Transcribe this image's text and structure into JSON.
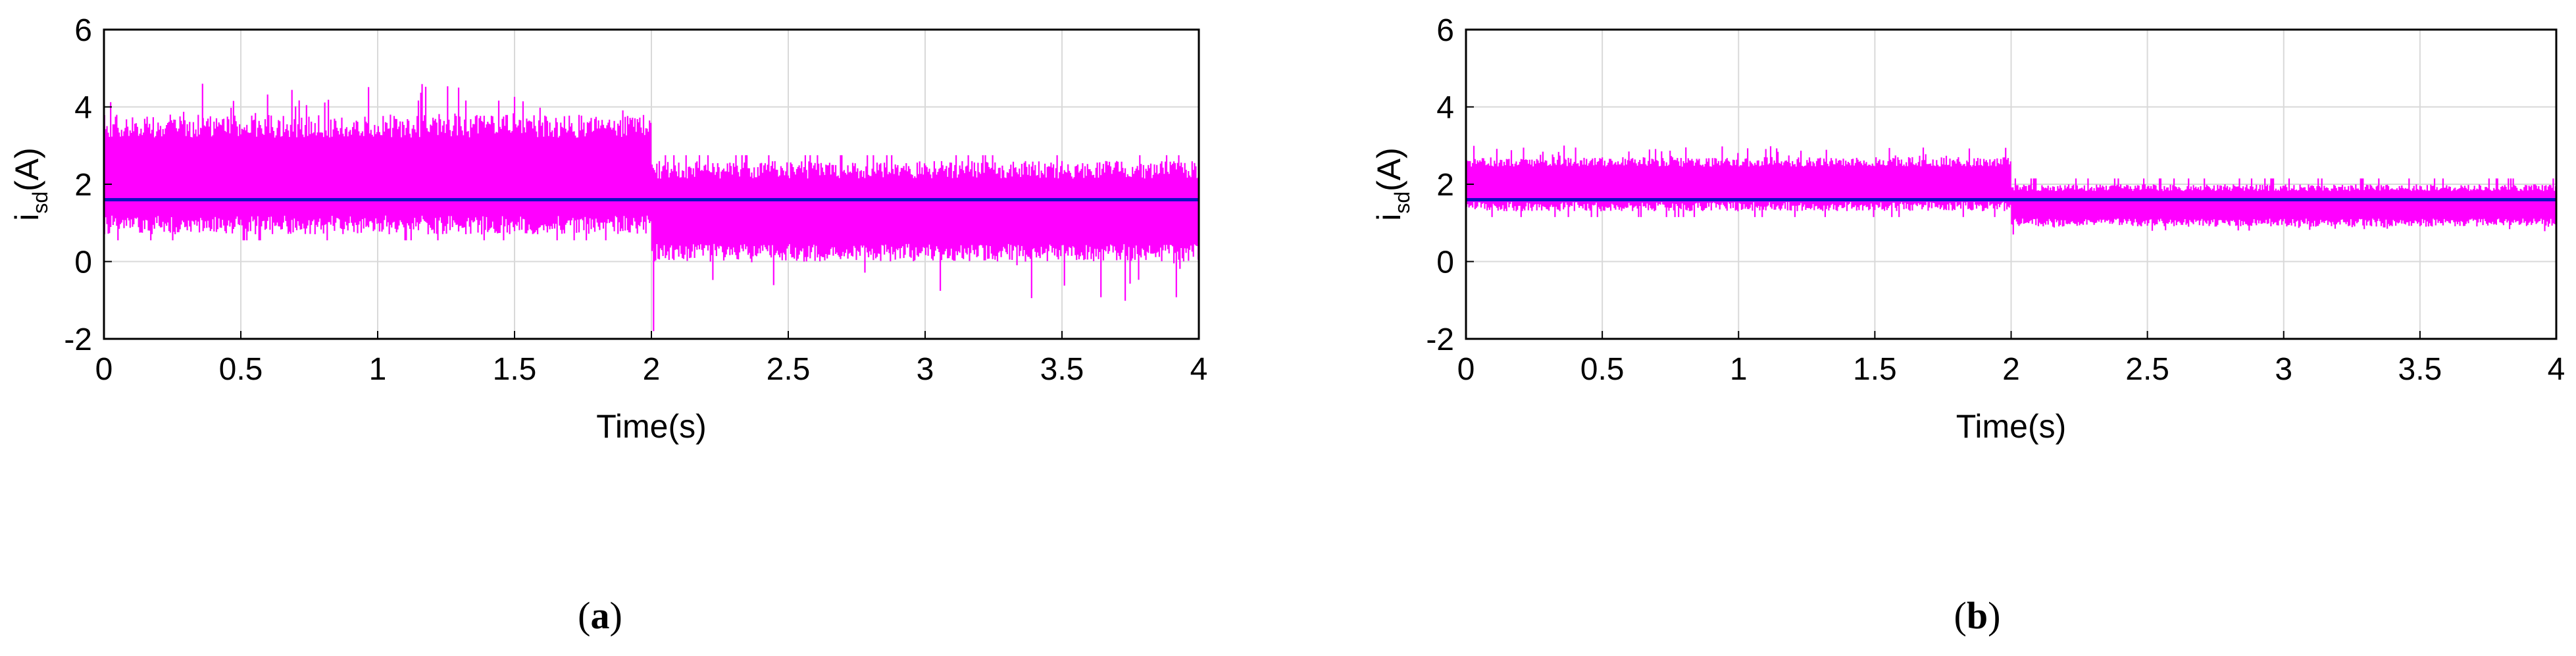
{
  "colors": {
    "noise": "#ff00ff",
    "reference": "#1010c0",
    "grid": "#d9d9d9",
    "axis": "#000000"
  },
  "chart_data": [
    {
      "type": "line",
      "panel_label": {
        "open": "(",
        "letter": "a",
        "close": ")"
      },
      "xlabel": "Time(s)",
      "ylabel": {
        "main": "i",
        "sub": "sd",
        "unit": "(A)"
      },
      "xlim": [
        0,
        4
      ],
      "ylim": [
        -2,
        6
      ],
      "x_ticks": [
        "0",
        "0.5",
        "1",
        "1.5",
        "2",
        "2.5",
        "3",
        "3.5",
        "4"
      ],
      "y_ticks": [
        "6",
        "4",
        "2",
        "0",
        "-2"
      ],
      "grid": true,
      "series": [
        {
          "type": "noise-band",
          "segments": [
            {
              "x": [
                0,
                2
              ],
              "center": 2.1,
              "low": 0.7,
              "high": 3.8,
              "peak": 4.6
            },
            {
              "x": [
                2,
                4
              ],
              "center": 1.3,
              "low": 0.0,
              "high": 2.6,
              "min": -1.8
            }
          ]
        },
        {
          "type": "reference",
          "y": 1.6
        }
      ]
    },
    {
      "type": "line",
      "panel_label": {
        "open": "(",
        "letter": "b",
        "close": ")"
      },
      "xlabel": "Time(s)",
      "ylabel": {
        "main": "i",
        "sub": "sd",
        "unit": "(A)"
      },
      "xlim": [
        0,
        4
      ],
      "ylim": [
        -2,
        6
      ],
      "x_ticks": [
        "0",
        "0.5",
        "1",
        "1.5",
        "2",
        "2.5",
        "3",
        "3.5",
        "4"
      ],
      "y_ticks": [
        "6",
        "4",
        "2",
        "0",
        "-2"
      ],
      "grid": true,
      "series": [
        {
          "type": "noise-band",
          "segments": [
            {
              "x": [
                0,
                2
              ],
              "center": 2.0,
              "low": 1.3,
              "high": 2.7,
              "peak": 3.0
            },
            {
              "x": [
                2,
                4
              ],
              "center": 1.5,
              "low": 0.9,
              "high": 2.0,
              "min": 0.7
            }
          ]
        },
        {
          "type": "reference",
          "y": 1.6
        }
      ]
    }
  ]
}
